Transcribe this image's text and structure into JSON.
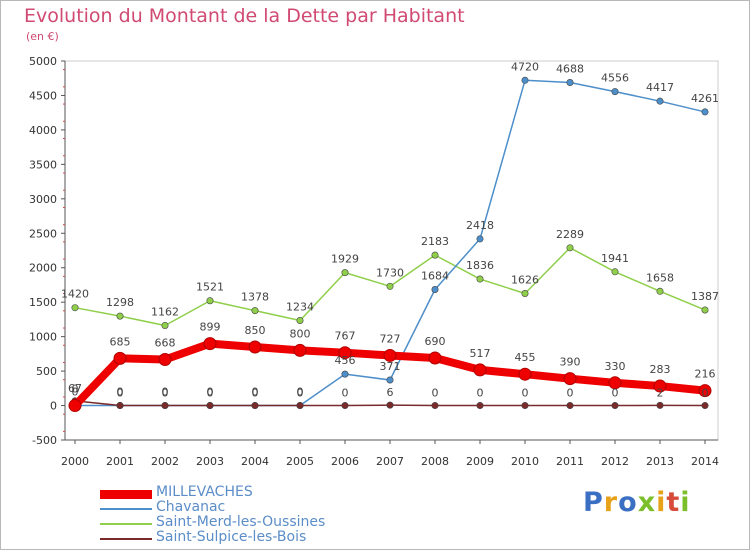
{
  "title": "Evolution du Montant de la Dette par Habitant",
  "subtitle": "(en €)",
  "logo": {
    "text": "Proxiti",
    "colors": [
      "#3a6fc4",
      "#e8a21a",
      "#3a6fc4",
      "#7bbf2a",
      "#e8a21a",
      "#d64b3a",
      "#7bbf2a"
    ]
  },
  "chart_data": {
    "type": "line",
    "x": [
      "2000",
      "2001",
      "2002",
      "2003",
      "2004",
      "2005",
      "2006",
      "2007",
      "2008",
      "2009",
      "2010",
      "2011",
      "2012",
      "2013",
      "2014"
    ],
    "ylim": [
      -500,
      5000
    ],
    "yticks": [
      -500,
      0,
      500,
      1000,
      1500,
      2000,
      2500,
      3000,
      3500,
      4000,
      4500,
      5000
    ],
    "grid": false,
    "legend": "bottom-left",
    "series": [
      {
        "name": "MILLEVACHES",
        "color": "#ee0000",
        "values": [
          0,
          685,
          668,
          899,
          850,
          800,
          767,
          727,
          690,
          517,
          455,
          390,
          330,
          283,
          216
        ]
      },
      {
        "name": "Chavanac",
        "color": "#4d8fca",
        "values": [
          0,
          0,
          0,
          0,
          0,
          0,
          456,
          371,
          1684,
          2418,
          4720,
          4688,
          4556,
          4417,
          4261
        ]
      },
      {
        "name": "Saint-Merd-les-Oussines",
        "color": "#8fcf4a",
        "values": [
          1420,
          1298,
          1162,
          1521,
          1378,
          1234,
          1929,
          1730,
          2183,
          1836,
          1626,
          2289,
          1941,
          1658,
          1387
        ]
      },
      {
        "name": "Saint-Sulpice-les-Bois",
        "color": "#7a2a2a",
        "values": [
          67,
          0,
          0,
          0,
          0,
          0,
          0,
          6,
          0,
          0,
          0,
          0,
          0,
          2,
          0
        ]
      }
    ]
  }
}
